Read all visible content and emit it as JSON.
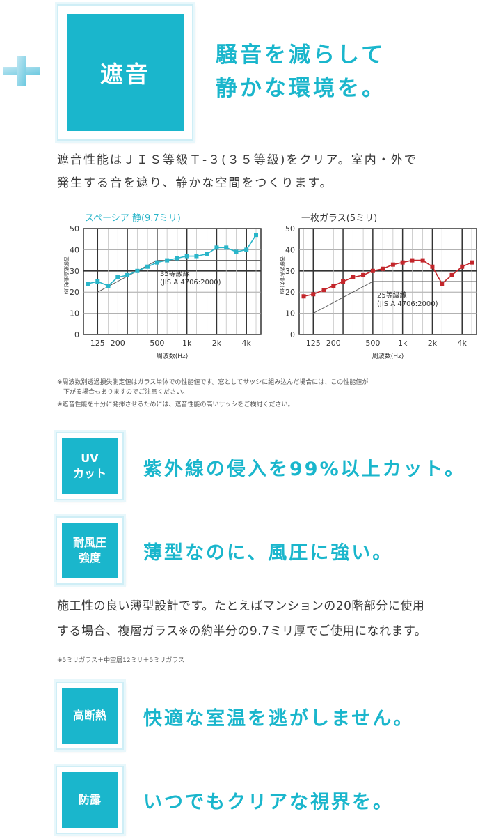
{
  "colors": {
    "accent": "#1ab6cc",
    "chart1": "#2ab5c9",
    "chart2": "#c3262b"
  },
  "plus_icon": "plus-icon",
  "hero": {
    "badge": "遮音",
    "headline": [
      "騒音を減らして",
      "静かな環境を。"
    ]
  },
  "intro": [
    "遮音性能はＪＩＳ等級Ｔ-３(３５等級)をクリア。室内・外で",
    "発生する音を遮り、静かな空間をつくります。"
  ],
  "chart_data": [
    {
      "type": "line",
      "title": "スペーシア 静(9.7ミリ)",
      "ylabel": "音響透過損失(㏈)",
      "xlabel": "周波数(Hz)",
      "ylim": [
        0,
        50
      ],
      "yticks": [
        "0",
        "10",
        "20",
        "30",
        "40",
        "50"
      ],
      "xticks": [
        "125",
        "200",
        "500",
        "1k",
        "2k",
        "4k"
      ],
      "x": [
        100,
        125,
        160,
        200,
        250,
        315,
        400,
        500,
        630,
        800,
        1000,
        1250,
        1600,
        2000,
        2500,
        3150,
        4000,
        5000
      ],
      "values": [
        24,
        25,
        23,
        27,
        28,
        30,
        32,
        34,
        35,
        36,
        37,
        37,
        38,
        41,
        41,
        39,
        40,
        47
      ],
      "reference_label": [
        "35等級線",
        "(JIS A 4706:2000)"
      ]
    },
    {
      "type": "line",
      "title": "一枚ガラス(5ミリ)",
      "ylabel": "音響透過損失(㏈)",
      "xlabel": "周波数(Hz)",
      "ylim": [
        0,
        50
      ],
      "yticks": [
        "0",
        "10",
        "20",
        "30",
        "40",
        "50"
      ],
      "xticks": [
        "125",
        "200",
        "500",
        "1k",
        "2k",
        "4k"
      ],
      "x": [
        100,
        125,
        160,
        200,
        250,
        315,
        400,
        500,
        630,
        800,
        1000,
        1250,
        1600,
        2000,
        2500,
        3150,
        4000,
        5000
      ],
      "values": [
        18,
        19,
        21,
        23,
        25,
        27,
        28,
        30,
        31,
        33,
        34,
        35,
        35,
        32,
        24,
        28,
        32,
        34
      ],
      "reference_label": [
        "25等級線",
        "(JIS A 4706:2000)"
      ]
    }
  ],
  "chart_notes": [
    "※周波数別透過損失測定値はガラス単体での性能値です。窓としてサッシに組み込んだ場合には、この性能値が",
    "　下がる場合もありますのでご注意ください。",
    "※遮音性能を十分に発揮させるためには、遮音性能の高いサッシをご検討ください。"
  ],
  "features": [
    {
      "badge": [
        "UV",
        "カット"
      ],
      "title": "紫外線の侵入を99%以上カット。"
    },
    {
      "badge": [
        "耐風圧",
        "強度"
      ],
      "title": "薄型なのに、風圧に強い。"
    },
    {
      "badge": [
        "高断熱"
      ],
      "title": "快適な室温を逃がしません。"
    },
    {
      "badge": [
        "防露"
      ],
      "title": "いつでもクリアな視界を。"
    }
  ],
  "wind_text": [
    "施工性の良い薄型設計です。たとえばマンションの20階部分に使用",
    "する場合、複層ガラス※の約半分の9.7ミリ厚でご使用になれます。"
  ],
  "wind_note": "※5ミリガラス＋中空層12ミリ＋5ミリガラス"
}
